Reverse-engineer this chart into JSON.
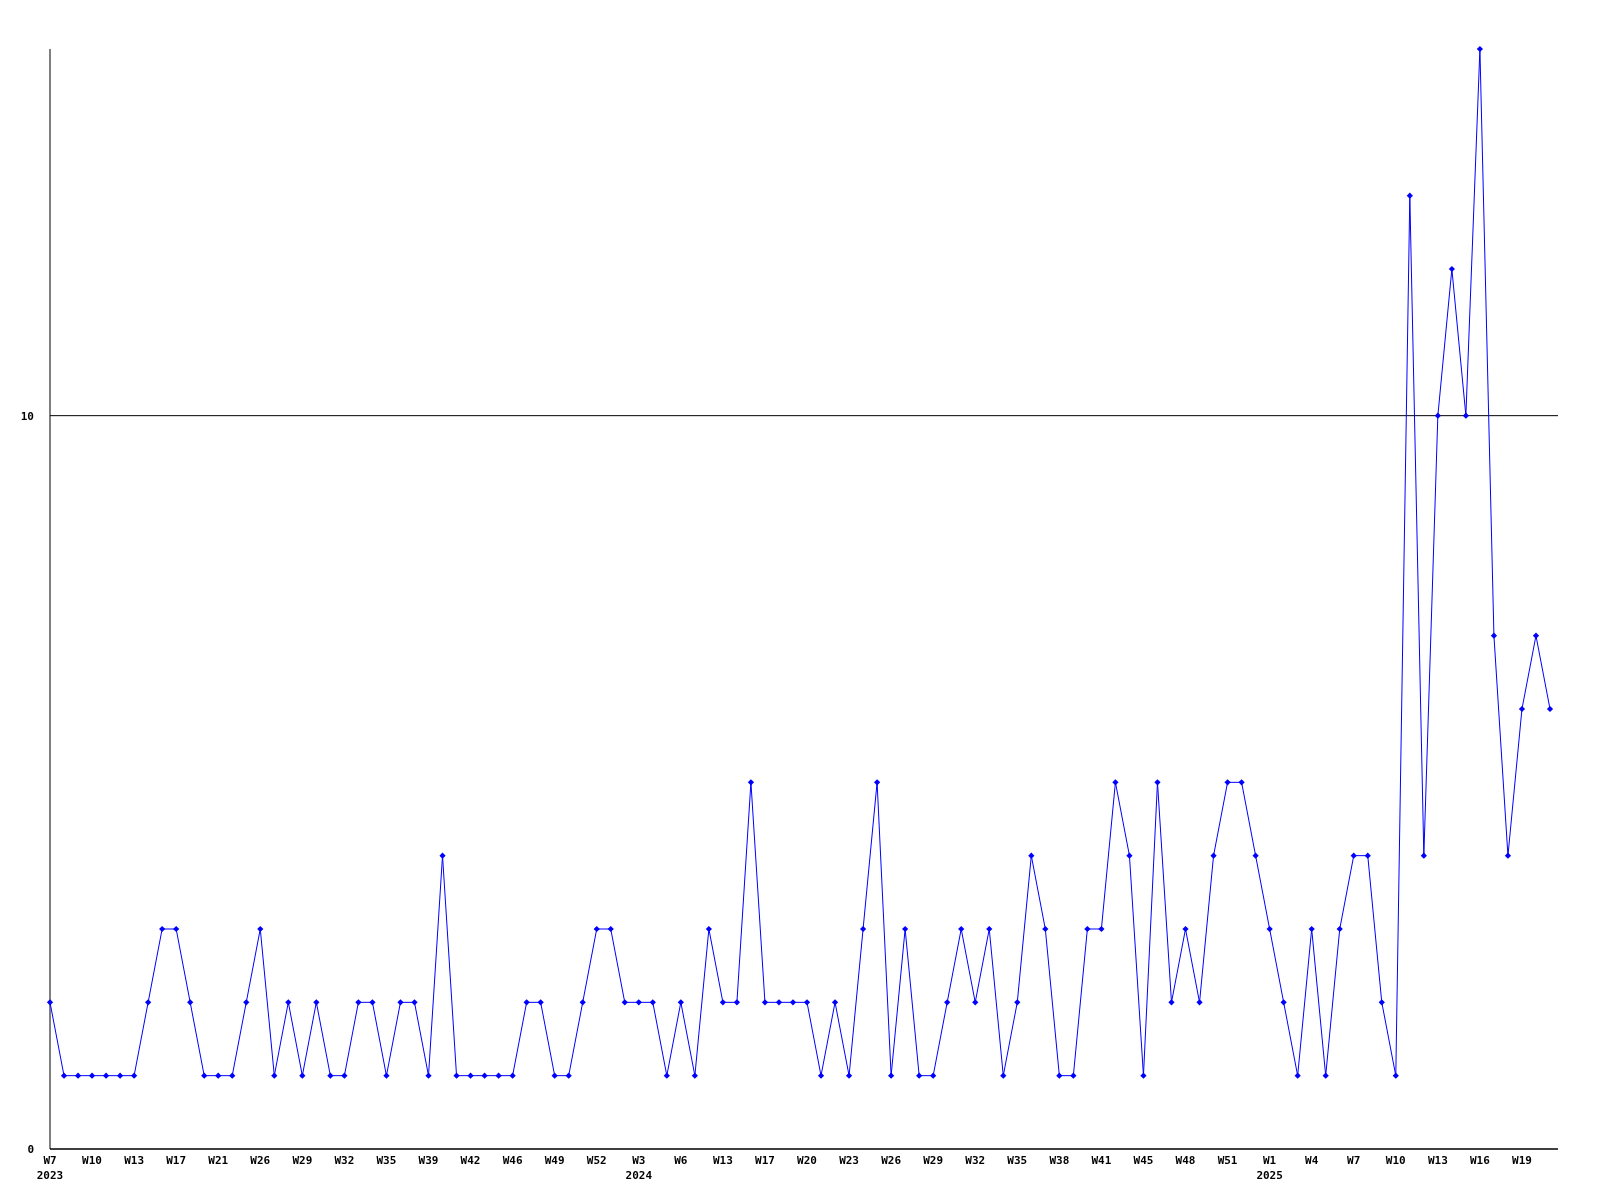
{
  "chart_data": {
    "type": "line",
    "categories": [
      "W7\n2023",
      null,
      null,
      "W10",
      null,
      null,
      "W13",
      null,
      null,
      "W17",
      null,
      null,
      "W21",
      null,
      null,
      "W26",
      null,
      null,
      "W29",
      null,
      null,
      "W32",
      null,
      null,
      "W35",
      null,
      null,
      "W39",
      null,
      null,
      "W42",
      null,
      null,
      "W46",
      null,
      null,
      "W49",
      null,
      null,
      "W52",
      null,
      null,
      "W3\n2024",
      null,
      null,
      "W6",
      null,
      null,
      "W13",
      null,
      null,
      "W17",
      null,
      null,
      "W20",
      null,
      null,
      "W23",
      null,
      null,
      "W26",
      null,
      null,
      "W29",
      null,
      null,
      "W32",
      null,
      null,
      "W35",
      null,
      null,
      "W38",
      null,
      null,
      "W41",
      null,
      null,
      "W45",
      null,
      null,
      "W48",
      null,
      null,
      "W51",
      null,
      null,
      "W1\n2025",
      null,
      null,
      "W4",
      null,
      null,
      "W7",
      null,
      null,
      "W10",
      null,
      null,
      "W13",
      null,
      null,
      "W16",
      null,
      null,
      "W19",
      null,
      null
    ],
    "series": [
      {
        "color": "#0000ff",
        "values": [
          2,
          1,
          1,
          1,
          1,
          1,
          1,
          2,
          3,
          3,
          2,
          1,
          1,
          1,
          2,
          3,
          1,
          2,
          1,
          2,
          1,
          1,
          2,
          2,
          1,
          2,
          2,
          1,
          4,
          1,
          1,
          1,
          1,
          1,
          2,
          2,
          1,
          1,
          2,
          3,
          3,
          2,
          2,
          2,
          1,
          2,
          1,
          3,
          2,
          2,
          5,
          2,
          2,
          2,
          2,
          1,
          2,
          1,
          3,
          5,
          1,
          3,
          1,
          1,
          2,
          3,
          2,
          3,
          1,
          2,
          4,
          3,
          1,
          1,
          3,
          3,
          5,
          4,
          1,
          5,
          2,
          3,
          2,
          4,
          5,
          5,
          4,
          3,
          2,
          1,
          3,
          1,
          3,
          4,
          4,
          2,
          1,
          13,
          4,
          10,
          12,
          10,
          15,
          7,
          4,
          6,
          7,
          6
        ]
      }
    ],
    "ylim": [
      0,
      15
    ],
    "yticks": [
      0,
      10
    ],
    "grid": "y",
    "marker": "diamond",
    "line_style": "solid"
  }
}
